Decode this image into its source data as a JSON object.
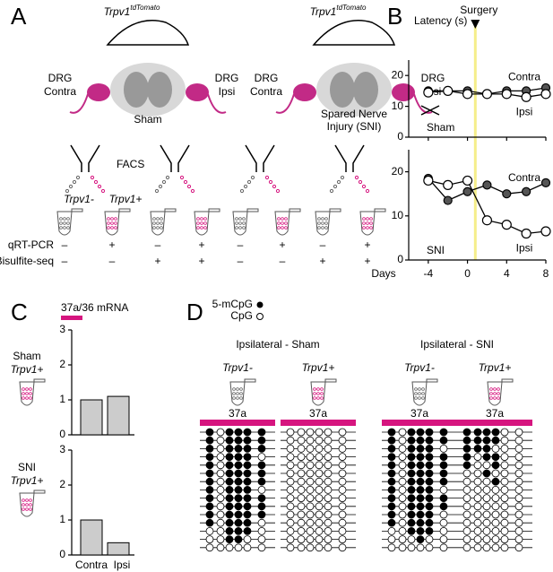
{
  "panel_labels": [
    "A",
    "B",
    "C",
    "D"
  ],
  "panel_a": {
    "construct": {
      "gene": "Trpv1",
      "allele": "tdTomato"
    },
    "conditions": [
      {
        "contra": [
          "DRG",
          "Contra"
        ],
        "ipsi": [
          "DRG",
          "Ipsi"
        ],
        "name": [
          "Sham"
        ]
      },
      {
        "contra": [
          "DRG",
          "Contra"
        ],
        "ipsi": [
          "DRG",
          "Ipsi"
        ],
        "name": [
          "Spared Nerve",
          "Injury (SNI)"
        ]
      }
    ],
    "sorting": "FACS",
    "fractions": [
      "Trpv1-",
      "Trpv1+"
    ],
    "assays": [
      {
        "label": "qRT-PCR",
        "marks": [
          "–",
          "+",
          "–",
          "+",
          "–",
          "+",
          "–",
          "+"
        ]
      },
      {
        "label": "Bisulfite-seq",
        "marks": [
          "–",
          "–",
          "+",
          "+",
          "–",
          "–",
          "+",
          "+"
        ]
      }
    ]
  },
  "chart_data": [
    {
      "type": "line",
      "annotation": "Sham",
      "ylabel": "Latency (s)",
      "event": {
        "label": "Surgery",
        "x": 0.8,
        "color": "#f5ee8a"
      },
      "x": [
        -4,
        -2,
        0,
        2,
        4,
        6,
        8
      ],
      "xlim": [
        -6,
        8
      ],
      "xticks": [
        -4,
        0,
        4,
        8
      ],
      "ylim": [
        0,
        25
      ],
      "yticks": [
        0,
        10,
        20
      ],
      "series": [
        {
          "name": "Contra",
          "color": "#555555",
          "values": [
            15,
            15,
            15,
            14,
            15,
            15,
            16
          ]
        },
        {
          "name": "Ipsi",
          "color": "#ffffff",
          "values": [
            14.5,
            15,
            14,
            14,
            14,
            13,
            14
          ]
        }
      ]
    },
    {
      "type": "line",
      "annotation": "SNI",
      "xlabel": "Days",
      "x": [
        -4,
        -2,
        0,
        2,
        4,
        6,
        8
      ],
      "xlim": [
        -6,
        8
      ],
      "xticks": [
        -4,
        0,
        4,
        8
      ],
      "ylim": [
        0,
        25
      ],
      "yticks": [
        0,
        10,
        20
      ],
      "series": [
        {
          "name": "Contra",
          "color": "#555555",
          "values": [
            18.5,
            13.5,
            15.5,
            17,
            15,
            15.5,
            17.5
          ]
        },
        {
          "name": "Ipsi",
          "color": "#ffffff",
          "values": [
            18,
            17,
            18,
            9,
            8,
            6,
            6.5
          ]
        }
      ]
    },
    {
      "type": "bar",
      "group": [
        "Sham",
        "Trpv1+"
      ],
      "legend": {
        "label": "37a/36 mRNA",
        "color": "#d6157f"
      },
      "values": [
        1.0,
        1.1
      ],
      "color": "#cccccc",
      "ylim": [
        0,
        3
      ],
      "yticks": [
        0,
        1,
        2,
        3
      ]
    },
    {
      "type": "bar",
      "group": [
        "SNI",
        "Trpv1+"
      ],
      "categories": [
        "Contra",
        "Ipsi"
      ],
      "values": [
        1.0,
        0.35
      ],
      "color": "#cccccc",
      "ylim": [
        0,
        3
      ],
      "yticks": [
        0,
        1,
        2,
        3
      ]
    }
  ],
  "panel_d": {
    "legend": {
      "methylated": "5-mCpG",
      "unmethylated": "CpG"
    },
    "groups": [
      {
        "title": "Ipsilateral - Sham",
        "samples": [
          {
            "label": "Trpv1-",
            "region": "37a",
            "clones": [
              [
                1,
                0,
                1,
                1,
                1,
                1
              ],
              [
                1,
                0,
                1,
                1,
                1,
                1
              ],
              [
                1,
                0,
                1,
                1,
                1,
                1
              ],
              [
                1,
                0,
                1,
                1,
                1,
                0
              ],
              [
                1,
                0,
                1,
                1,
                1,
                1
              ],
              [
                1,
                0,
                1,
                1,
                1,
                1
              ],
              [
                1,
                0,
                1,
                1,
                1,
                1
              ],
              [
                1,
                0,
                1,
                1,
                1,
                0
              ],
              [
                1,
                0,
                1,
                1,
                1,
                1
              ],
              [
                1,
                0,
                1,
                1,
                1,
                1
              ],
              [
                1,
                0,
                1,
                1,
                1,
                1
              ],
              [
                1,
                0,
                1,
                1,
                1,
                0
              ],
              [
                0,
                0,
                1,
                1,
                1,
                0
              ],
              [
                0,
                0,
                1,
                1,
                0,
                0
              ],
              [
                0,
                0,
                0,
                0,
                0,
                0
              ]
            ]
          },
          {
            "label": "Trpv1+",
            "region": "37a",
            "clones": [
              [
                0,
                0,
                0,
                0,
                0,
                0
              ],
              [
                0,
                0,
                0,
                0,
                0,
                0
              ],
              [
                0,
                0,
                0,
                0,
                0,
                0
              ],
              [
                0,
                0,
                0,
                0,
                0,
                0
              ],
              [
                0,
                0,
                0,
                0,
                0,
                0
              ],
              [
                0,
                0,
                0,
                0,
                0,
                0
              ],
              [
                0,
                0,
                0,
                0,
                0,
                0
              ],
              [
                0,
                0,
                0,
                0,
                0,
                0
              ],
              [
                0,
                0,
                0,
                0,
                0,
                0
              ],
              [
                0,
                0,
                0,
                0,
                0,
                0
              ],
              [
                0,
                0,
                0,
                0,
                0,
                0
              ],
              [
                0,
                0,
                0,
                0,
                0,
                0
              ],
              [
                0,
                0,
                0,
                0,
                0,
                0
              ],
              [
                0,
                0,
                0,
                0,
                0,
                0
              ],
              [
                0,
                0,
                0,
                0,
                0,
                0
              ]
            ]
          }
        ]
      },
      {
        "title": "Ipsilateral - SNI",
        "samples": [
          {
            "label": "Trpv1-",
            "region": "37a",
            "clones": [
              [
                1,
                0,
                1,
                1,
                1,
                1
              ],
              [
                1,
                0,
                1,
                1,
                1,
                1
              ],
              [
                1,
                0,
                1,
                1,
                1,
                0
              ],
              [
                1,
                0,
                1,
                1,
                1,
                1
              ],
              [
                1,
                0,
                1,
                1,
                1,
                1
              ],
              [
                1,
                0,
                1,
                1,
                1,
                1
              ],
              [
                1,
                0,
                1,
                1,
                1,
                1
              ],
              [
                1,
                0,
                1,
                1,
                1,
                0
              ],
              [
                1,
                0,
                1,
                1,
                1,
                1
              ],
              [
                1,
                0,
                1,
                1,
                1,
                1
              ],
              [
                1,
                0,
                1,
                1,
                1,
                0
              ],
              [
                1,
                0,
                1,
                1,
                1,
                0
              ],
              [
                0,
                0,
                1,
                1,
                1,
                0
              ],
              [
                0,
                0,
                0,
                1,
                0,
                0
              ],
              [
                0,
                0,
                0,
                0,
                0,
                0
              ]
            ]
          },
          {
            "label": "Trpv1+",
            "region": "37a",
            "clones": [
              [
                1,
                1,
                1,
                1,
                0,
                0
              ],
              [
                1,
                1,
                1,
                1,
                0,
                0
              ],
              [
                1,
                1,
                1,
                0,
                0,
                0
              ],
              [
                1,
                0,
                1,
                1,
                0,
                0
              ],
              [
                1,
                0,
                0,
                1,
                0,
                0
              ],
              [
                0,
                0,
                1,
                0,
                0,
                0
              ],
              [
                0,
                0,
                0,
                1,
                0,
                0
              ],
              [
                0,
                0,
                0,
                0,
                0,
                0
              ],
              [
                0,
                0,
                0,
                0,
                0,
                0
              ],
              [
                0,
                0,
                0,
                0,
                0,
                0
              ],
              [
                0,
                0,
                0,
                0,
                0,
                0
              ],
              [
                0,
                0,
                0,
                0,
                0,
                0
              ],
              [
                0,
                0,
                0,
                0,
                0,
                0
              ],
              [
                0,
                0,
                0,
                0,
                0,
                0
              ],
              [
                0,
                0,
                0,
                0,
                0,
                0
              ]
            ]
          }
        ]
      }
    ]
  }
}
